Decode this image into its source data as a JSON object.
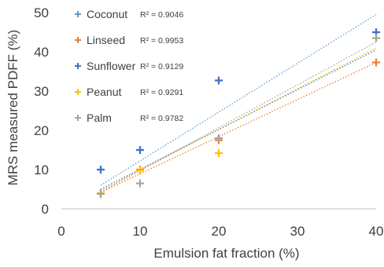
{
  "chart_data": {
    "type": "scatter",
    "xlabel": "Emulsion fat fraction (%)",
    "ylabel": "MRS measured PDFF  (%)",
    "xlim": [
      0,
      40
    ],
    "ylim": [
      0,
      50
    ],
    "x_ticks": [
      0,
      10,
      20,
      30,
      40
    ],
    "y_ticks": [
      0,
      10,
      20,
      30,
      40,
      50
    ],
    "trendlines": "linear, dotted",
    "grid": false,
    "legend_position": "top-left",
    "series": [
      {
        "name": "Coconut",
        "r2_label": "R² = 0.9046",
        "color": "#5B9BD5",
        "x": [
          5,
          10,
          20,
          40
        ],
        "y": [
          10,
          15,
          32.7,
          45
        ],
        "trend": {
          "x0": 5,
          "y0": 6.0,
          "x1": 40,
          "y1": 49.5
        }
      },
      {
        "name": "Linseed",
        "r2_label": "R² = 0.9953",
        "color": "#ED7D31",
        "x": [
          5,
          10,
          20,
          40
        ],
        "y": [
          4,
          10,
          17.5,
          37.3
        ],
        "trend": {
          "x0": 5,
          "y0": 4.2,
          "x1": 40,
          "y1": 37.3
        }
      },
      {
        "name": "Sunflower",
        "r2_label": "R² = 0.9129",
        "color": "#4472C4",
        "x": [
          5,
          10,
          20,
          40
        ],
        "y": [
          10,
          15,
          32.7,
          45
        ],
        "trend": {
          "x0": 5,
          "y0": 5.0,
          "x1": 40,
          "y1": 40.5
        }
      },
      {
        "name": "Peanut",
        "r2_label": "R² = 0.9291",
        "color": "#FFC000",
        "x": [
          5,
          10,
          20,
          40
        ],
        "y": [
          4,
          9.8,
          14.2,
          43.5
        ],
        "trend": {
          "x0": 5,
          "y0": 4.6,
          "x1": 40,
          "y1": 41.0
        }
      },
      {
        "name": "Palm",
        "r2_label": "R² = 0.9782",
        "color": "#A5A5A5",
        "x": [
          5,
          10,
          20,
          40
        ],
        "y": [
          3.8,
          6.5,
          18,
          43.5
        ],
        "trend": {
          "x0": 5,
          "y0": 4.3,
          "x1": 40,
          "y1": 42.5
        }
      }
    ]
  }
}
